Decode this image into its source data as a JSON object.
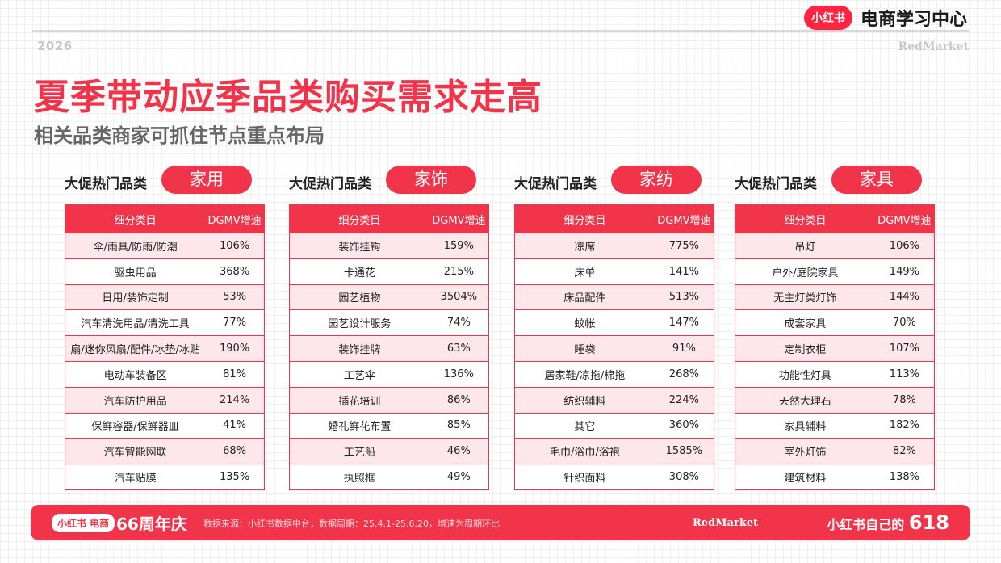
{
  "header": {
    "year": "2026",
    "brand_right": "RedMarket",
    "logo": "小红书",
    "logo_text": "电商学习中心"
  },
  "title": "夏季带动应季品类购买需求走高",
  "subtitle": "相关品类商家可抓住节点重点布局",
  "section_label": "大促热门品类",
  "table_headers": [
    "细分类目",
    "DGMV增速"
  ],
  "sections": [
    {
      "pill": "家用",
      "rows": [
        [
          "伞/雨具/防雨/防潮",
          "106%"
        ],
        [
          "驱虫用品",
          "368%"
        ],
        [
          "日用/装饰定制",
          "53%"
        ],
        [
          "汽车清洗用品/清洗工具",
          "77%"
        ],
        [
          "扇/迷你风扇/配件/冰垫/冰贴",
          "190%"
        ],
        [
          "电动车装备区",
          "81%"
        ],
        [
          "汽车防护用品",
          "214%"
        ],
        [
          "保鲜容器/保鲜器皿",
          "41%"
        ],
        [
          "汽车智能网联",
          "68%"
        ],
        [
          "汽车贴膜",
          "135%"
        ]
      ]
    },
    {
      "pill": "家饰",
      "rows": [
        [
          "装饰挂钩",
          "159%"
        ],
        [
          "卡通花",
          "215%"
        ],
        [
          "园艺植物",
          "3504%"
        ],
        [
          "园艺设计服务",
          "74%"
        ],
        [
          "装饰挂牌",
          "63%"
        ],
        [
          "工艺伞",
          "136%"
        ],
        [
          "插花培训",
          "86%"
        ],
        [
          "婚礼鲜花布置",
          "85%"
        ],
        [
          "工艺船",
          "46%"
        ],
        [
          "执照框",
          "49%"
        ]
      ]
    },
    {
      "pill": "家纺",
      "rows": [
        [
          "凉席",
          "775%"
        ],
        [
          "床单",
          "141%"
        ],
        [
          "床品配件",
          "513%"
        ],
        [
          "蚊帐",
          "147%"
        ],
        [
          "睡袋",
          "91%"
        ],
        [
          "居家鞋/凉拖/棉拖",
          "268%"
        ],
        [
          "纺织辅料",
          "224%"
        ],
        [
          "其它",
          "360%"
        ],
        [
          "毛巾/浴巾/浴袍",
          "1585%"
        ],
        [
          "针织面料",
          "308%"
        ]
      ]
    },
    {
      "pill": "家具",
      "rows": [
        [
          "吊灯",
          "106%"
        ],
        [
          "户外/庭院家具",
          "149%"
        ],
        [
          "无主灯类灯饰",
          "144%"
        ],
        [
          "成套家具",
          "70%"
        ],
        [
          "定制衣柜",
          "107%"
        ],
        [
          "功能性灯具",
          "113%"
        ],
        [
          "天然大理石",
          "78%"
        ],
        [
          "家具辅料",
          "182%"
        ],
        [
          "室外灯饰",
          "82%"
        ],
        [
          "建筑材料",
          "138%"
        ]
      ]
    }
  ],
  "footer": {
    "logo": "小红书 电商",
    "event": "66周年庆",
    "source": "数据来源：小红书数据中台，数据周期：25.4.1-25.6.20，增速为周期环比",
    "brand": "RedMarket",
    "slogan_prefix": "小红书自己的",
    "slogan_number": "618"
  },
  "colors": {
    "accent": "#f2344b",
    "row_alt": "#fde7ea"
  }
}
